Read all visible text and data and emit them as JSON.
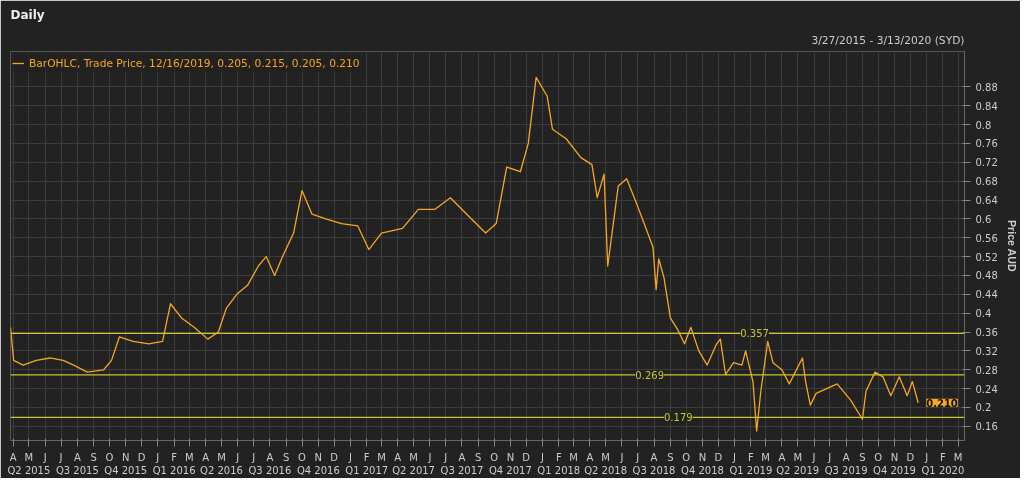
{
  "chart_data": {
    "type": "line",
    "title": "Daily",
    "subtitle": "3/27/2015 - 3/13/2020 (SYD)",
    "ylabel": "Price AUD",
    "annotations": [
      {
        "text": "0.210",
        "x": "2019-12-16",
        "y": 0.21
      }
    ],
    "xlim": [
      "2015-03-27",
      "2020-03-13"
    ],
    "xticks": [
      {
        "value": "2015-04-01",
        "label": "A"
      },
      {
        "value": "2015-05-01",
        "label": "M\nQ2 2015"
      },
      {
        "value": "2015-06-01",
        "label": "J"
      },
      {
        "value": "2015-07-01",
        "label": "J"
      },
      {
        "value": "2015-08-01",
        "label": "A\nQ3 2015"
      },
      {
        "value": "2015-09-01",
        "label": "S"
      },
      {
        "value": "2015-10-01",
        "label": "O"
      },
      {
        "value": "2015-11-01",
        "label": "N\nQ4 2015"
      },
      {
        "value": "2015-12-01",
        "label": "D"
      },
      {
        "value": "2016-01-01",
        "label": "J"
      },
      {
        "value": "2016-02-01",
        "label": "F\nQ1 2016"
      },
      {
        "value": "2016-03-01",
        "label": "M"
      },
      {
        "value": "2016-04-01",
        "label": "A"
      },
      {
        "value": "2016-05-01",
        "label": "M\nQ2 2016"
      },
      {
        "value": "2016-06-01",
        "label": "J"
      },
      {
        "value": "2016-07-01",
        "label": "J"
      },
      {
        "value": "2016-08-01",
        "label": "A\nQ3 2016"
      },
      {
        "value": "2016-09-01",
        "label": "S"
      },
      {
        "value": "2016-10-01",
        "label": "O"
      },
      {
        "value": "2016-11-01",
        "label": "N\nQ4 2016"
      },
      {
        "value": "2016-12-01",
        "label": "D"
      },
      {
        "value": "2017-01-01",
        "label": "J"
      },
      {
        "value": "2017-02-01",
        "label": "F\nQ1 2017"
      },
      {
        "value": "2017-03-01",
        "label": "M"
      },
      {
        "value": "2017-04-01",
        "label": "A"
      },
      {
        "value": "2017-05-01",
        "label": "M\nQ2 2017"
      },
      {
        "value": "2017-06-01",
        "label": "J"
      },
      {
        "value": "2017-07-01",
        "label": "J"
      },
      {
        "value": "2017-08-01",
        "label": "A\nQ3 2017"
      },
      {
        "value": "2017-09-01",
        "label": "S"
      },
      {
        "value": "2017-10-01",
        "label": "O"
      },
      {
        "value": "2017-11-01",
        "label": "N\nQ4 2017"
      },
      {
        "value": "2017-12-01",
        "label": "D"
      },
      {
        "value": "2018-01-01",
        "label": "J"
      },
      {
        "value": "2018-02-01",
        "label": "F\nQ1 2018"
      },
      {
        "value": "2018-03-01",
        "label": "M"
      },
      {
        "value": "2018-04-01",
        "label": "A"
      },
      {
        "value": "2018-05-01",
        "label": "M\nQ2 2018"
      },
      {
        "value": "2018-06-01",
        "label": "J"
      },
      {
        "value": "2018-07-01",
        "label": "J"
      },
      {
        "value": "2018-08-01",
        "label": "A\nQ3 2018"
      },
      {
        "value": "2018-09-01",
        "label": "S"
      },
      {
        "value": "2018-10-01",
        "label": "O"
      },
      {
        "value": "2018-11-01",
        "label": "N\nQ4 2018"
      },
      {
        "value": "2018-12-01",
        "label": "D"
      },
      {
        "value": "2019-01-01",
        "label": "J"
      },
      {
        "value": "2019-02-01",
        "label": "F\nQ1 2019"
      },
      {
        "value": "2019-03-01",
        "label": "M"
      },
      {
        "value": "2019-04-01",
        "label": "A"
      },
      {
        "value": "2019-05-01",
        "label": "M\nQ2 2019"
      },
      {
        "value": "2019-06-01",
        "label": "J"
      },
      {
        "value": "2019-07-01",
        "label": "J"
      },
      {
        "value": "2019-08-01",
        "label": "A\nQ3 2019"
      },
      {
        "value": "2019-09-01",
        "label": "S"
      },
      {
        "value": "2019-10-01",
        "label": "O"
      },
      {
        "value": "2019-11-01",
        "label": "N\nQ4 2019"
      },
      {
        "value": "2019-12-01",
        "label": "D"
      },
      {
        "value": "2020-01-01",
        "label": "J"
      },
      {
        "value": "2020-02-01",
        "label": "F\nQ1 2020"
      },
      {
        "value": "2020-03-01",
        "label": "M"
      }
    ],
    "ylim": [
      0.13,
      0.955
    ],
    "yticks": [
      0.16,
      0.2,
      0.24,
      0.28,
      0.32,
      0.36,
      0.4,
      0.44,
      0.48,
      0.52,
      0.56,
      0.6,
      0.64,
      0.68,
      0.72,
      0.76,
      0.8,
      0.84,
      0.88
    ],
    "grid": true,
    "legend": "top left",
    "marker": "none",
    "line_style": "solid",
    "ref_lines": [
      {
        "axis": "y",
        "value": 0.357,
        "label": "0.357",
        "color": "#c8c832"
      },
      {
        "axis": "y",
        "value": 0.269,
        "label": "0.269",
        "color": "#c8c832"
      },
      {
        "axis": "y",
        "value": 0.179,
        "label": "0.179",
        "color": "#c8c832"
      }
    ],
    "series": [
      {
        "name": "BarOHLC, Trade Price, 12/16/2019, 0.205, 0.215, 0.205, 0.210",
        "color": "#f5a623",
        "x": [
          "2015-03-27",
          "2015-04-02",
          "2015-04-20",
          "2015-05-15",
          "2015-06-10",
          "2015-07-05",
          "2015-07-25",
          "2015-08-20",
          "2015-09-20",
          "2015-10-05",
          "2015-10-20",
          "2015-11-15",
          "2015-12-15",
          "2016-01-10",
          "2016-01-25",
          "2016-02-15",
          "2016-03-10",
          "2016-04-05",
          "2016-04-25",
          "2016-05-10",
          "2016-05-30",
          "2016-06-20",
          "2016-07-10",
          "2016-07-25",
          "2016-08-10",
          "2016-08-25",
          "2016-09-15",
          "2016-10-01",
          "2016-10-20",
          "2016-11-15",
          "2016-12-15",
          "2017-01-15",
          "2017-02-05",
          "2017-03-01",
          "2017-04-10",
          "2017-05-10",
          "2017-06-10",
          "2017-07-10",
          "2017-08-10",
          "2017-09-15",
          "2017-10-05",
          "2017-10-25",
          "2017-11-20",
          "2017-12-05",
          "2017-12-20",
          "2018-01-10",
          "2018-01-20",
          "2018-02-15",
          "2018-03-15",
          "2018-04-05",
          "2018-04-15",
          "2018-04-28",
          "2018-05-05",
          "2018-05-25",
          "2018-06-10",
          "2018-06-28",
          "2018-07-15",
          "2018-07-30",
          "2018-08-05",
          "2018-08-10",
          "2018-08-20",
          "2018-09-01",
          "2018-09-15",
          "2018-09-28",
          "2018-10-10",
          "2018-10-25",
          "2018-11-10",
          "2018-11-28",
          "2018-12-05",
          "2018-12-15",
          "2018-12-30",
          "2019-01-15",
          "2019-01-22",
          "2019-02-05",
          "2019-02-12",
          "2019-02-20",
          "2019-03-05",
          "2019-03-15",
          "2019-04-01",
          "2019-04-15",
          "2019-05-10",
          "2019-05-16",
          "2019-05-25",
          "2019-06-05",
          "2019-07-15",
          "2019-08-10",
          "2019-09-01",
          "2019-09-08",
          "2019-09-25",
          "2019-10-10",
          "2019-10-25",
          "2019-11-10",
          "2019-11-25",
          "2019-12-05",
          "2019-12-16"
        ],
        "values": [
          0.37,
          0.3,
          0.29,
          0.3,
          0.305,
          0.3,
          0.29,
          0.275,
          0.28,
          0.3,
          0.35,
          0.34,
          0.335,
          0.34,
          0.42,
          0.39,
          0.37,
          0.345,
          0.36,
          0.41,
          0.44,
          0.46,
          0.5,
          0.52,
          0.48,
          0.52,
          0.57,
          0.66,
          0.61,
          0.6,
          0.59,
          0.585,
          0.535,
          0.57,
          0.58,
          0.62,
          0.62,
          0.645,
          0.61,
          0.57,
          0.59,
          0.71,
          0.7,
          0.76,
          0.9,
          0.86,
          0.79,
          0.77,
          0.73,
          0.715,
          0.645,
          0.695,
          0.5,
          0.67,
          0.685,
          0.635,
          0.585,
          0.54,
          0.45,
          0.515,
          0.475,
          0.39,
          0.365,
          0.335,
          0.37,
          0.32,
          0.29,
          0.335,
          0.345,
          0.27,
          0.295,
          0.29,
          0.32,
          0.255,
          0.15,
          0.235,
          0.34,
          0.295,
          0.28,
          0.25,
          0.305,
          0.255,
          0.205,
          0.23,
          0.25,
          0.215,
          0.175,
          0.235,
          0.275,
          0.265,
          0.225,
          0.265,
          0.225,
          0.255,
          0.21
        ]
      }
    ]
  }
}
